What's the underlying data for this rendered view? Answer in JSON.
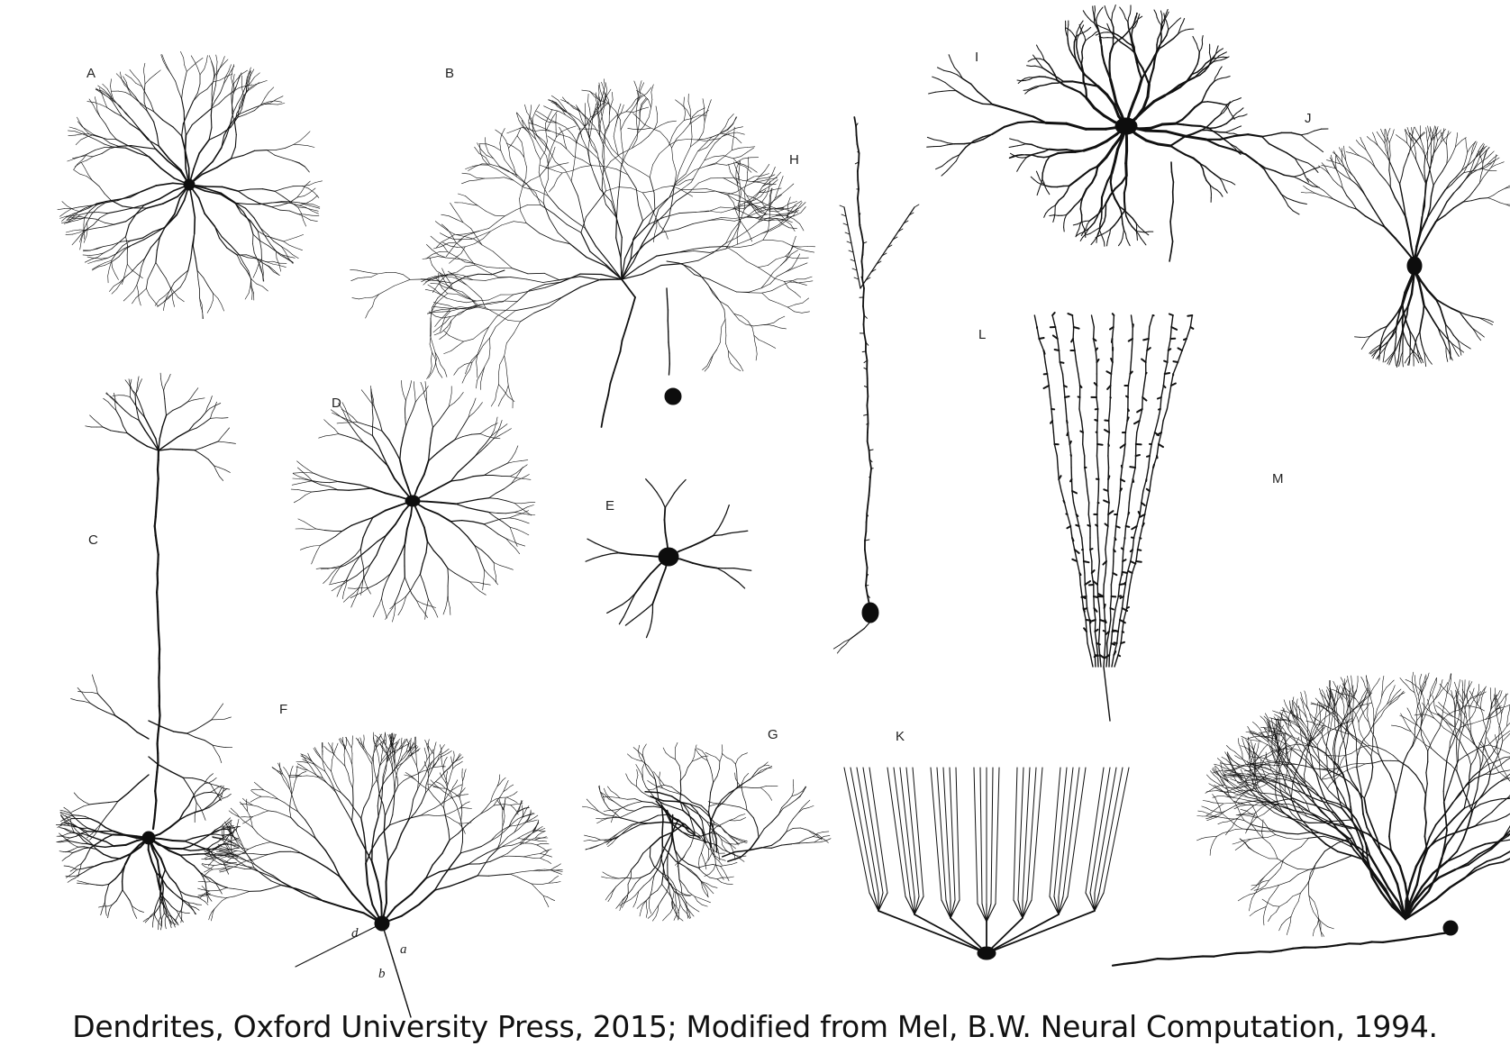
{
  "figure": {
    "panels": [
      {
        "id": "A",
        "label": "A"
      },
      {
        "id": "B",
        "label": "B"
      },
      {
        "id": "C",
        "label": "C"
      },
      {
        "id": "D",
        "label": "D"
      },
      {
        "id": "E",
        "label": "E"
      },
      {
        "id": "F",
        "label": "F"
      },
      {
        "id": "G",
        "label": "G"
      },
      {
        "id": "H",
        "label": "H"
      },
      {
        "id": "I",
        "label": "I"
      },
      {
        "id": "J",
        "label": "J"
      },
      {
        "id": "K",
        "label": "K"
      },
      {
        "id": "L",
        "label": "L"
      },
      {
        "id": "M",
        "label": "M"
      }
    ],
    "f_sublabels": [
      "a",
      "b",
      "d"
    ],
    "caption": "Dendrites, Oxford University Press, 2015; Modified from Mel, B.W. Neural Computation, 1994."
  },
  "colors": {
    "ink": "#111111",
    "background": "#ffffff"
  }
}
